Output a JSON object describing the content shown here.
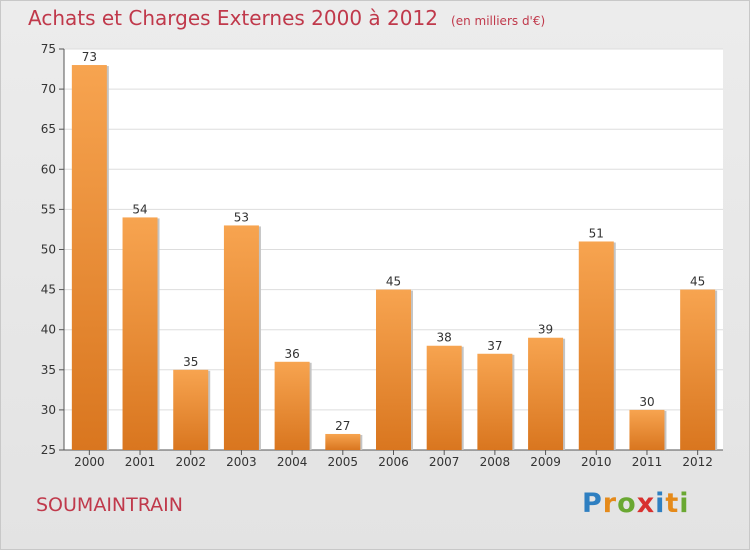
{
  "header": {
    "title": "Achats et Charges Externes 2000 à 2012",
    "subtitle": "(en milliers d'€)"
  },
  "footer": {
    "town": "SOUMAINTRAIN",
    "brand_letters": [
      "P",
      "r",
      "o",
      "x",
      "i",
      "t",
      "i"
    ],
    "brand_colors": [
      "#2e7fc1",
      "#e58a1a",
      "#6aa832",
      "#d8312f",
      "#2e7fc1",
      "#e58a1a",
      "#6aa832"
    ]
  },
  "colors": {
    "title": "#c0394b",
    "bar_light": "#f7a450",
    "bar_dark": "#d9761f",
    "plot_bg": "#ffffff",
    "grid": "#dddddd"
  },
  "chart_data": {
    "type": "bar",
    "categories": [
      "2000",
      "2001",
      "2002",
      "2003",
      "2004",
      "2005",
      "2006",
      "2007",
      "2008",
      "2009",
      "2010",
      "2011",
      "2012"
    ],
    "values": [
      73,
      54,
      35,
      53,
      36,
      27,
      45,
      38,
      37,
      39,
      51,
      30,
      45
    ],
    "ylim": [
      25,
      75
    ],
    "yticks": [
      25,
      30,
      35,
      40,
      45,
      50,
      55,
      60,
      65,
      70,
      75
    ],
    "grid": true,
    "data_labels": true
  }
}
